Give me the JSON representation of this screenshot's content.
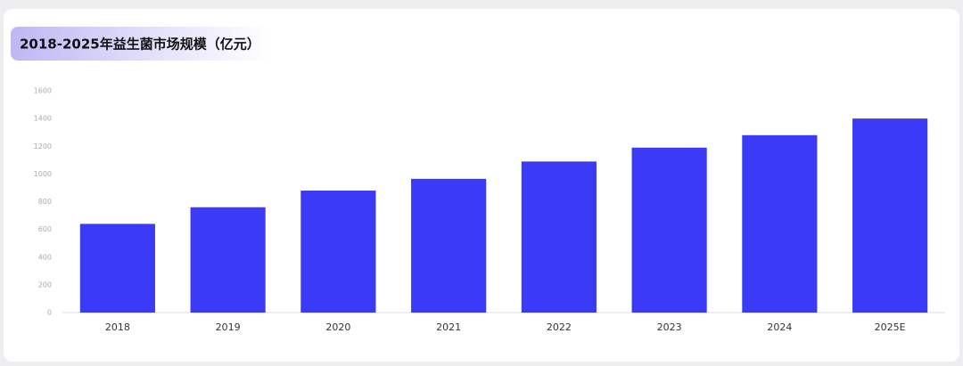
{
  "chart_data": {
    "type": "bar",
    "title": "2018-2025年益生菌市场规模（亿元）",
    "categories": [
      "2018",
      "2019",
      "2020",
      "2021",
      "2022",
      "2023",
      "2024",
      "2025E"
    ],
    "values": [
      640,
      760,
      880,
      965,
      1090,
      1190,
      1280,
      1400
    ],
    "color": "#3a3af7",
    "ylim": [
      0,
      1600
    ],
    "yticks": [
      0,
      200,
      400,
      600,
      800,
      1000,
      1200,
      1400,
      1600
    ],
    "grid": false
  }
}
